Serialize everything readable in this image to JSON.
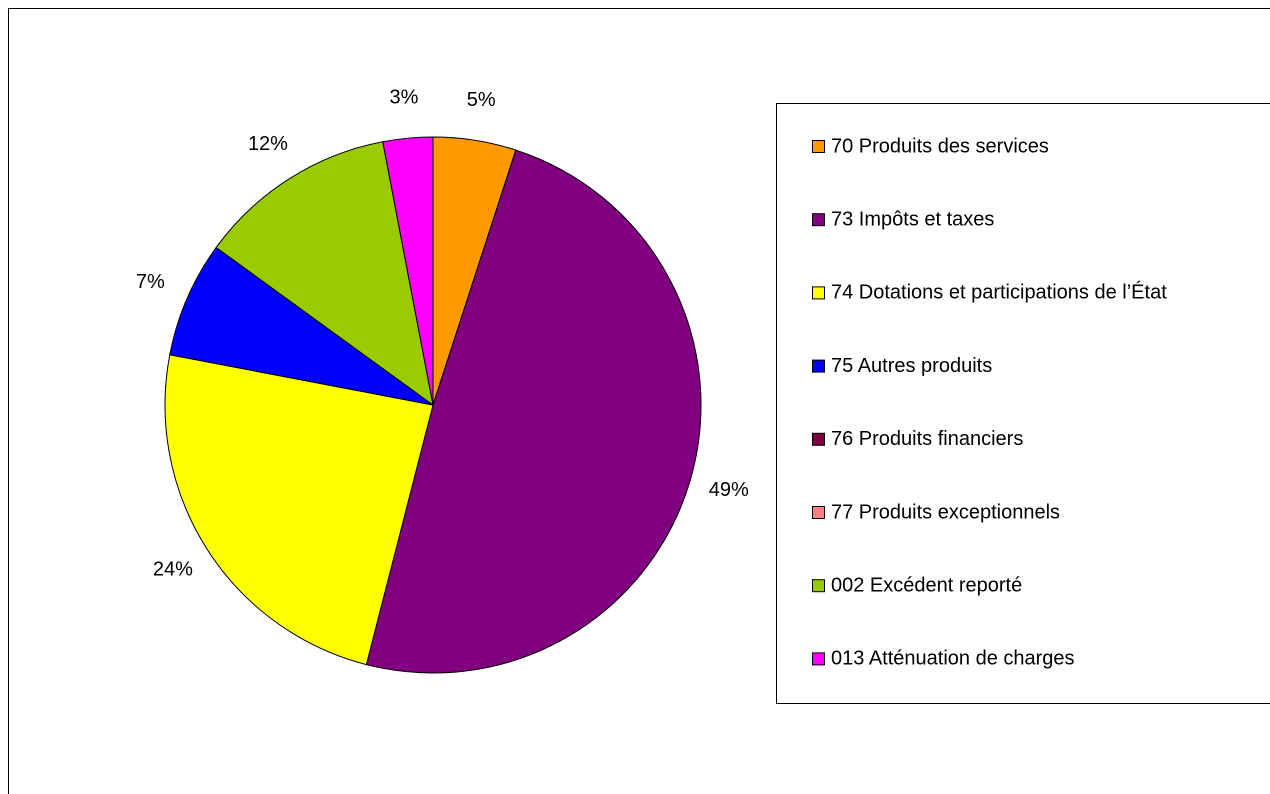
{
  "chart_data": {
    "type": "pie",
    "categories": [
      "70 Produits des services",
      "73 Impôts et taxes",
      "74 Dotations et participations de l’État",
      "75 Autres produits",
      "76 Produits financiers",
      "77 Produits exceptionnels",
      "002 Excédent reporté",
      "013 Atténuation de charges"
    ],
    "values": [
      5,
      49,
      24,
      7,
      0,
      0,
      12,
      3
    ],
    "value_labels": [
      "5%",
      "49%",
      "24%",
      "7%",
      null,
      null,
      "12%",
      "3%"
    ],
    "colors": [
      "#ff9900",
      "#800080",
      "#ffff00",
      "#0000ff",
      "#800040",
      "#ff8080",
      "#99cc00",
      "#ff00ff"
    ],
    "legend": "right"
  }
}
